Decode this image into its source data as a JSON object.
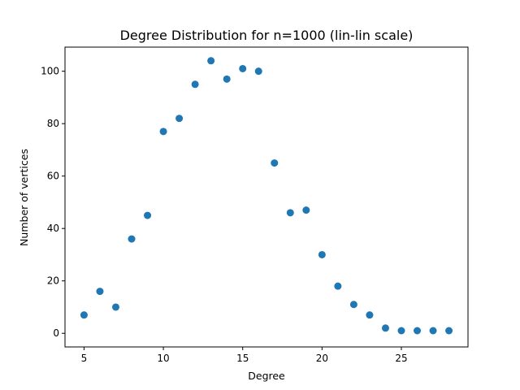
{
  "chart_data": {
    "type": "scatter",
    "title": "Degree Distribution for n=1000 (lin-lin scale)",
    "xlabel": "Degree",
    "ylabel": "Number of vertices",
    "xlim": [
      3.8,
      29.2
    ],
    "ylim": [
      -5.2,
      109.2
    ],
    "xticks": [
      5,
      10,
      15,
      20,
      25
    ],
    "yticks": [
      0,
      20,
      40,
      60,
      80,
      100
    ],
    "grid": false,
    "marker_color": "#1f77b4",
    "series": [
      {
        "x": [
          5,
          6,
          7,
          8,
          9,
          10,
          11,
          12,
          13,
          14,
          15,
          16,
          17,
          18,
          19,
          20,
          21,
          22,
          23,
          24,
          25,
          26,
          27,
          28
        ],
        "y": [
          7,
          16,
          10,
          36,
          45,
          77,
          82,
          95,
          104,
          97,
          101,
          100,
          65,
          46,
          47,
          30,
          18,
          11,
          7,
          2,
          1,
          1,
          1,
          1
        ]
      }
    ]
  }
}
